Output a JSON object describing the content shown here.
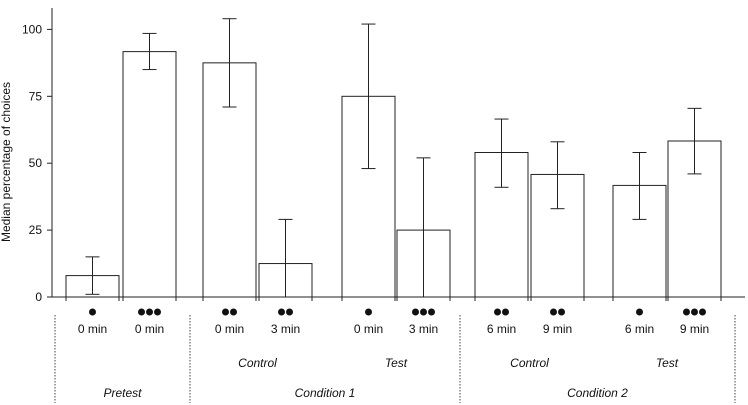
{
  "chart_data": {
    "type": "bar",
    "ylabel": "Median percentage of choices",
    "ylim": [
      0,
      108
    ],
    "yticks": [
      0,
      25,
      50,
      75,
      100
    ],
    "bars": [
      {
        "dots": 1,
        "time": "0 min",
        "value": 8,
        "err_low": 1,
        "err_high": 15
      },
      {
        "dots": 3,
        "time": "0 min",
        "value": 91.7,
        "err_low": 85,
        "err_high": 98.5
      },
      {
        "dots": 2,
        "time": "0 min",
        "value": 87.5,
        "err_low": 71,
        "err_high": 104
      },
      {
        "dots": 2,
        "time": "3 min",
        "value": 12.5,
        "err_low": 0,
        "err_high": 29
      },
      {
        "dots": 1,
        "time": "0 min",
        "value": 75,
        "err_low": 48,
        "err_high": 102
      },
      {
        "dots": 3,
        "time": "3 min",
        "value": 25,
        "err_low": 0,
        "err_high": 52
      },
      {
        "dots": 2,
        "time": "6 min",
        "value": 54,
        "err_low": 41,
        "err_high": 66.5
      },
      {
        "dots": 2,
        "time": "9 min",
        "value": 45.8,
        "err_low": 33,
        "err_high": 58
      },
      {
        "dots": 1,
        "time": "6 min",
        "value": 41.7,
        "err_low": 29,
        "err_high": 54
      },
      {
        "dots": 3,
        "time": "9 min",
        "value": 58.3,
        "err_low": 46,
        "err_high": 70.5
      }
    ],
    "subgroups": [
      {
        "label": "Control",
        "bars": [
          2,
          3
        ]
      },
      {
        "label": "Test",
        "bars": [
          4,
          5
        ]
      },
      {
        "label": "Control",
        "bars": [
          6,
          7
        ]
      },
      {
        "label": "Test",
        "bars": [
          8,
          9
        ]
      }
    ],
    "groups": [
      {
        "label": "Pretest",
        "bars": [
          0,
          1
        ]
      },
      {
        "label": "Condition 1",
        "bars": [
          2,
          5
        ]
      },
      {
        "label": "Condition 2",
        "bars": [
          6,
          9
        ]
      }
    ]
  }
}
